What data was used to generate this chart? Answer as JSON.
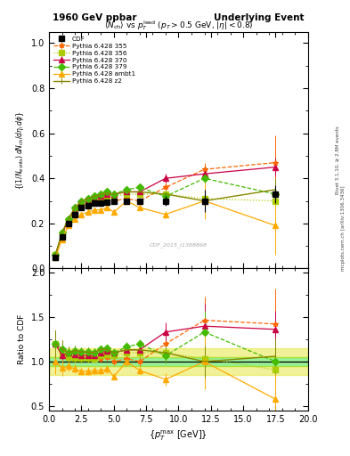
{
  "title_left": "1960 GeV ppbar",
  "title_right": "Underlying Event",
  "watermark": "CDF_2015_I1388868",
  "rivet_label": "Rivet 3.1.10, ≥ 2.8M events",
  "arxiv_label": "mcplots.cern.ch [arXiv:1306.3436]",
  "cdf_x": [
    0.5,
    1.0,
    1.5,
    2.0,
    2.5,
    3.0,
    3.5,
    4.0,
    4.5,
    5.0,
    6.0,
    7.0,
    9.0,
    12.0,
    17.5
  ],
  "cdf_y": [
    0.05,
    0.14,
    0.2,
    0.24,
    0.27,
    0.28,
    0.29,
    0.29,
    0.295,
    0.3,
    0.3,
    0.3,
    0.3,
    0.3,
    0.33
  ],
  "cdf_yerr": [
    0.005,
    0.01,
    0.01,
    0.01,
    0.01,
    0.01,
    0.01,
    0.01,
    0.01,
    0.01,
    0.01,
    0.01,
    0.02,
    0.05,
    0.04
  ],
  "p355_x": [
    0.5,
    1.0,
    1.5,
    2.0,
    2.5,
    3.0,
    3.5,
    4.0,
    4.5,
    5.0,
    6.0,
    7.0,
    9.0,
    12.0,
    17.5
  ],
  "p355_y": [
    0.06,
    0.15,
    0.21,
    0.25,
    0.28,
    0.29,
    0.3,
    0.3,
    0.31,
    0.3,
    0.31,
    0.3,
    0.36,
    0.44,
    0.47
  ],
  "p355_yerr": [
    0.005,
    0.008,
    0.008,
    0.008,
    0.008,
    0.008,
    0.008,
    0.008,
    0.008,
    0.008,
    0.01,
    0.01,
    0.02,
    0.03,
    0.12
  ],
  "p356_x": [
    0.5,
    1.0,
    1.5,
    2.0,
    2.5,
    3.0,
    3.5,
    4.0,
    4.5,
    5.0,
    6.0,
    7.0,
    9.0,
    12.0,
    17.5
  ],
  "p356_y": [
    0.06,
    0.15,
    0.21,
    0.25,
    0.28,
    0.29,
    0.3,
    0.31,
    0.32,
    0.32,
    0.33,
    0.33,
    0.33,
    0.31,
    0.3
  ],
  "p356_yerr": [
    0.005,
    0.008,
    0.008,
    0.008,
    0.008,
    0.008,
    0.008,
    0.008,
    0.008,
    0.008,
    0.01,
    0.01,
    0.015,
    0.02,
    0.03
  ],
  "p370_x": [
    0.5,
    1.0,
    1.5,
    2.0,
    2.5,
    3.0,
    3.5,
    4.0,
    4.5,
    5.0,
    6.0,
    7.0,
    9.0,
    12.0,
    17.5
  ],
  "p370_y": [
    0.06,
    0.15,
    0.22,
    0.26,
    0.29,
    0.3,
    0.31,
    0.32,
    0.33,
    0.33,
    0.34,
    0.34,
    0.4,
    0.42,
    0.45
  ],
  "p370_yerr": [
    0.005,
    0.008,
    0.008,
    0.008,
    0.008,
    0.008,
    0.008,
    0.008,
    0.008,
    0.008,
    0.01,
    0.01,
    0.02,
    0.03,
    0.04
  ],
  "p379_x": [
    0.5,
    1.0,
    1.5,
    2.0,
    2.5,
    3.0,
    3.5,
    4.0,
    4.5,
    5.0,
    6.0,
    7.0,
    9.0,
    12.0,
    17.5
  ],
  "p379_y": [
    0.06,
    0.16,
    0.22,
    0.27,
    0.3,
    0.31,
    0.32,
    0.33,
    0.34,
    0.33,
    0.35,
    0.36,
    0.32,
    0.4,
    0.33
  ],
  "p379_yerr": [
    0.005,
    0.008,
    0.008,
    0.008,
    0.008,
    0.008,
    0.008,
    0.008,
    0.008,
    0.008,
    0.01,
    0.01,
    0.015,
    0.025,
    0.04
  ],
  "pambt1_x": [
    0.5,
    1.0,
    1.5,
    2.0,
    2.5,
    3.0,
    3.5,
    4.0,
    4.5,
    5.0,
    6.0,
    7.0,
    9.0,
    12.0,
    17.5
  ],
  "pambt1_y": [
    0.05,
    0.13,
    0.19,
    0.22,
    0.24,
    0.25,
    0.26,
    0.26,
    0.27,
    0.25,
    0.3,
    0.27,
    0.24,
    0.3,
    0.19
  ],
  "pambt1_yerr": [
    0.005,
    0.008,
    0.008,
    0.008,
    0.008,
    0.008,
    0.008,
    0.008,
    0.008,
    0.008,
    0.01,
    0.01,
    0.015,
    0.08,
    0.13
  ],
  "pz2_x": [
    0.5,
    1.0,
    1.5,
    2.0,
    2.5,
    3.0,
    3.5,
    4.0,
    4.5,
    5.0,
    6.0,
    7.0,
    9.0,
    12.0,
    17.5
  ],
  "pz2_y": [
    0.06,
    0.16,
    0.22,
    0.27,
    0.3,
    0.31,
    0.32,
    0.33,
    0.335,
    0.33,
    0.34,
    0.34,
    0.33,
    0.3,
    0.35
  ],
  "pz2_yerr": [
    0.005,
    0.008,
    0.008,
    0.008,
    0.008,
    0.008,
    0.008,
    0.008,
    0.008,
    0.008,
    0.01,
    0.01,
    0.015,
    0.02,
    0.05
  ],
  "color_cdf": "#000000",
  "color_p355": "#ff6600",
  "color_p356": "#aacc00",
  "color_p370": "#cc0044",
  "color_p379": "#44bb00",
  "color_pambt1": "#ffaa00",
  "color_pz2": "#888800",
  "band_green": 0.05,
  "band_yellow": 0.15,
  "ylim_main": [
    0.0,
    1.05
  ],
  "ylim_ratio": [
    0.45,
    2.05
  ],
  "xlim": [
    0.0,
    20.0
  ]
}
